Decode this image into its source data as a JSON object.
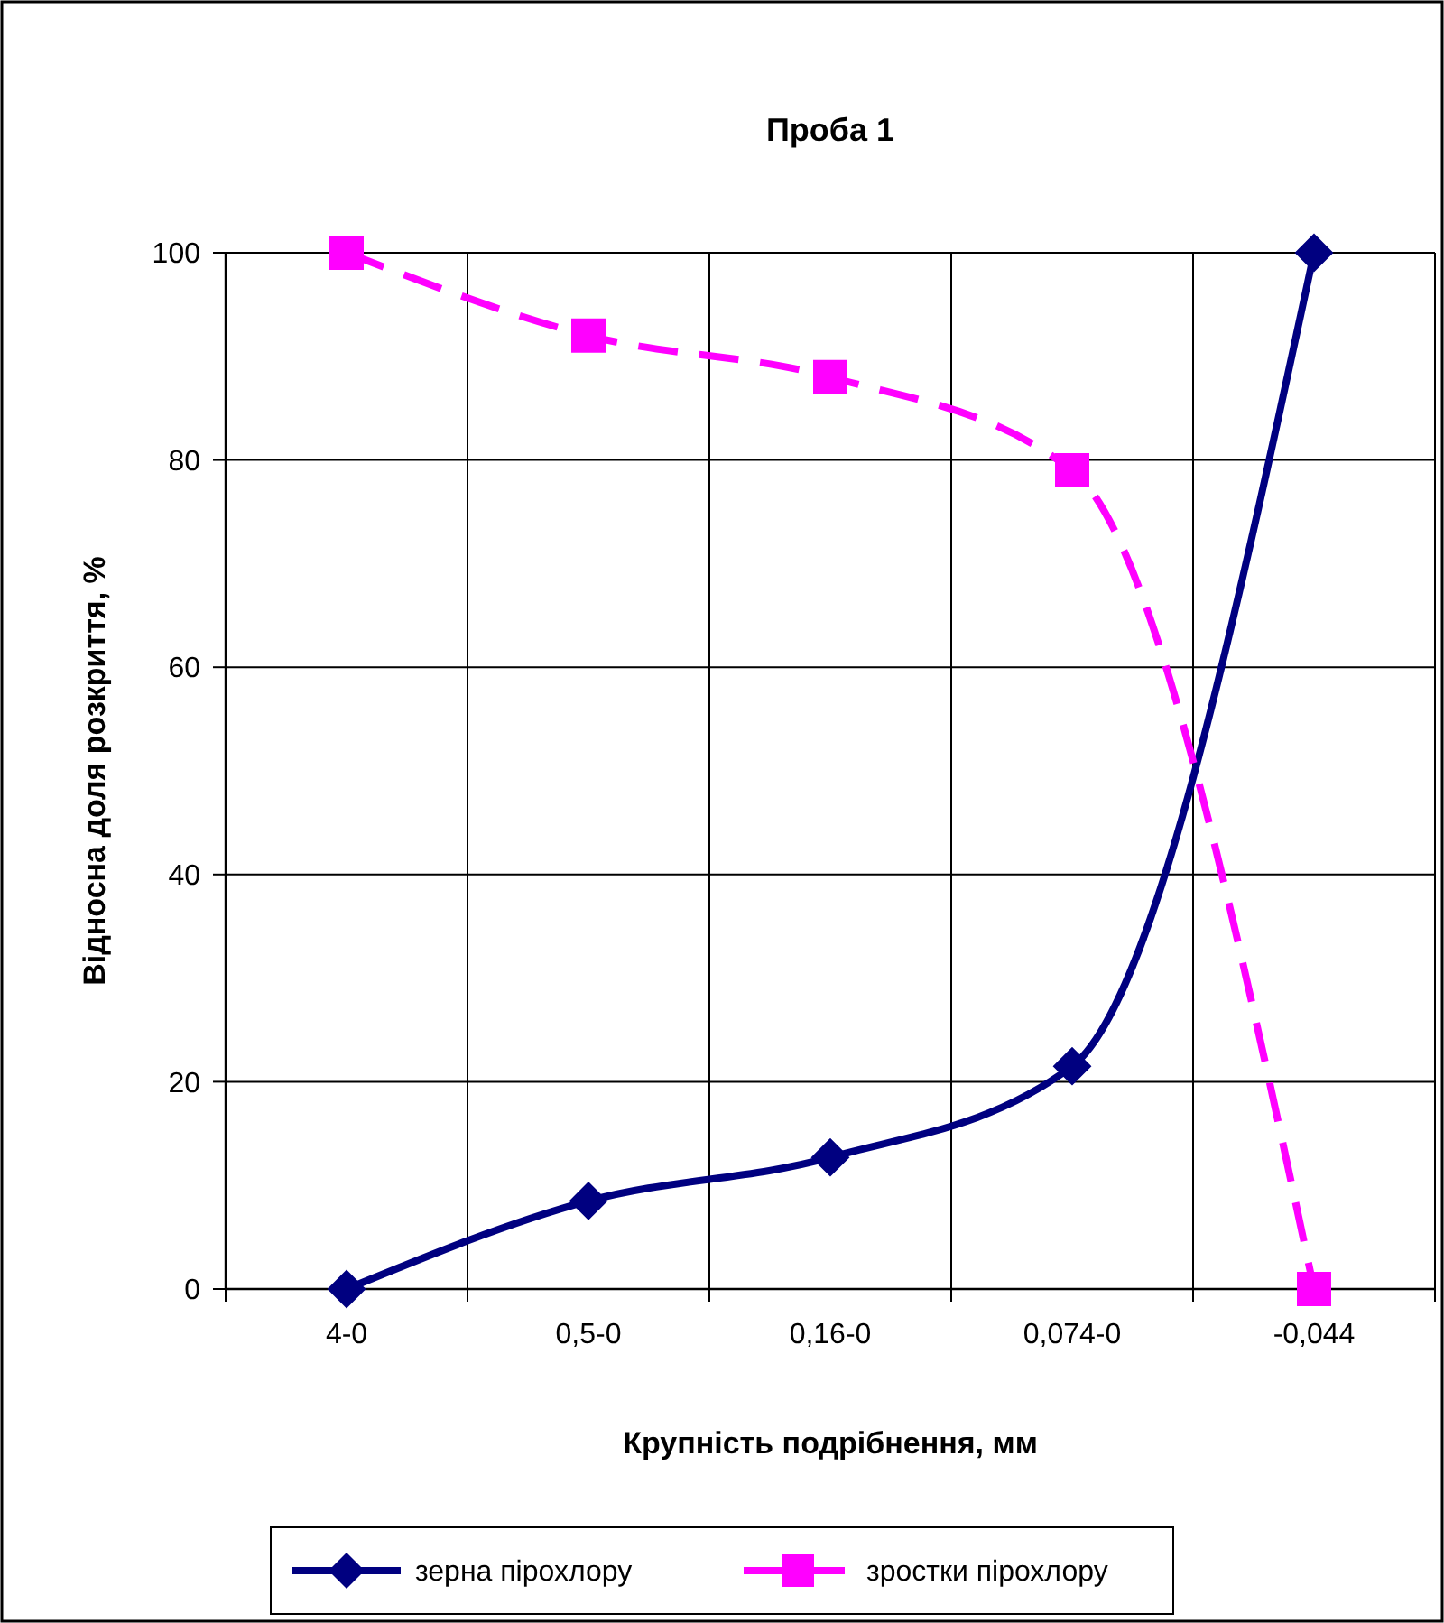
{
  "chart_data": {
    "type": "line",
    "title": "Проба 1",
    "xlabel": "Крупність подрібнення, мм",
    "ylabel": "Відносна доля розкриття, %",
    "categories": [
      "4-0",
      "0,5-0",
      "0,16-0",
      "0,074-0",
      "-0,044"
    ],
    "series": [
      {
        "name": "зерна пірохлору",
        "color": "#000080",
        "values": [
          0,
          8.5,
          12.7,
          21.5,
          100
        ],
        "marker": "diamond",
        "line_style": "solid"
      },
      {
        "name": "зростки пірохлору",
        "color": "#ff00ff",
        "values": [
          100,
          92,
          88,
          79,
          0
        ],
        "marker": "square",
        "line_style": "dashed"
      }
    ],
    "ylim": [
      0,
      100
    ],
    "yticks": [
      0,
      20,
      40,
      60,
      80,
      100
    ],
    "grid": true,
    "legend": "bottom"
  }
}
